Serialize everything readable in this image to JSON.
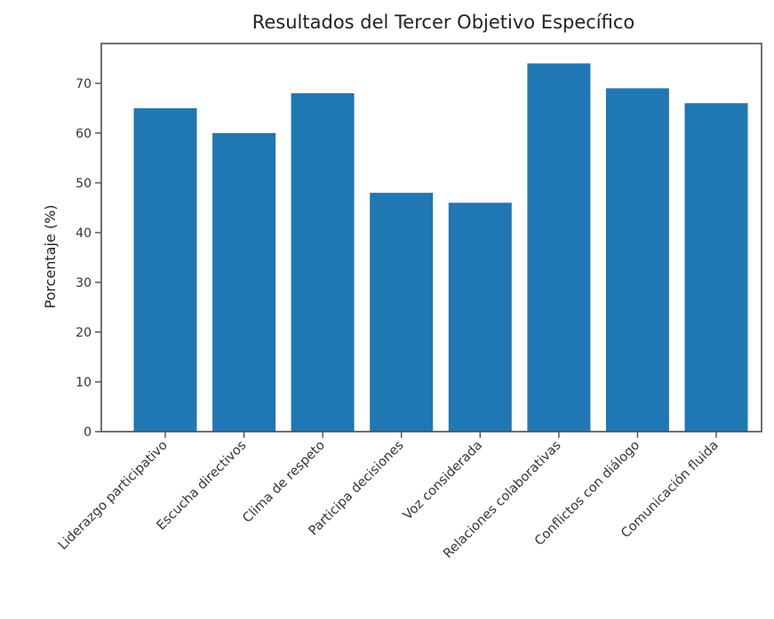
{
  "chart_data": {
    "type": "bar",
    "title": "Resultados del Tercer Objetivo Específico",
    "xlabel": "",
    "ylabel": "Porcentaje (%)",
    "categories": [
      "Liderazgo participativo",
      "Escucha directivos",
      "Clima de respeto",
      "Participa decisiones",
      "Voz considerada",
      "Relaciones colaborativas",
      "Conflictos con diálogo",
      "Comunicación fluida"
    ],
    "values": [
      65,
      60,
      68,
      48,
      46,
      74,
      69,
      66
    ],
    "ylim": [
      0,
      78
    ],
    "yticks": [
      0,
      10,
      20,
      30,
      40,
      50,
      60,
      70
    ],
    "grid": false,
    "legend": "none",
    "colors": {
      "bar": "#1f77b4",
      "axes": "#4d4d4d",
      "text": "#222222"
    }
  }
}
